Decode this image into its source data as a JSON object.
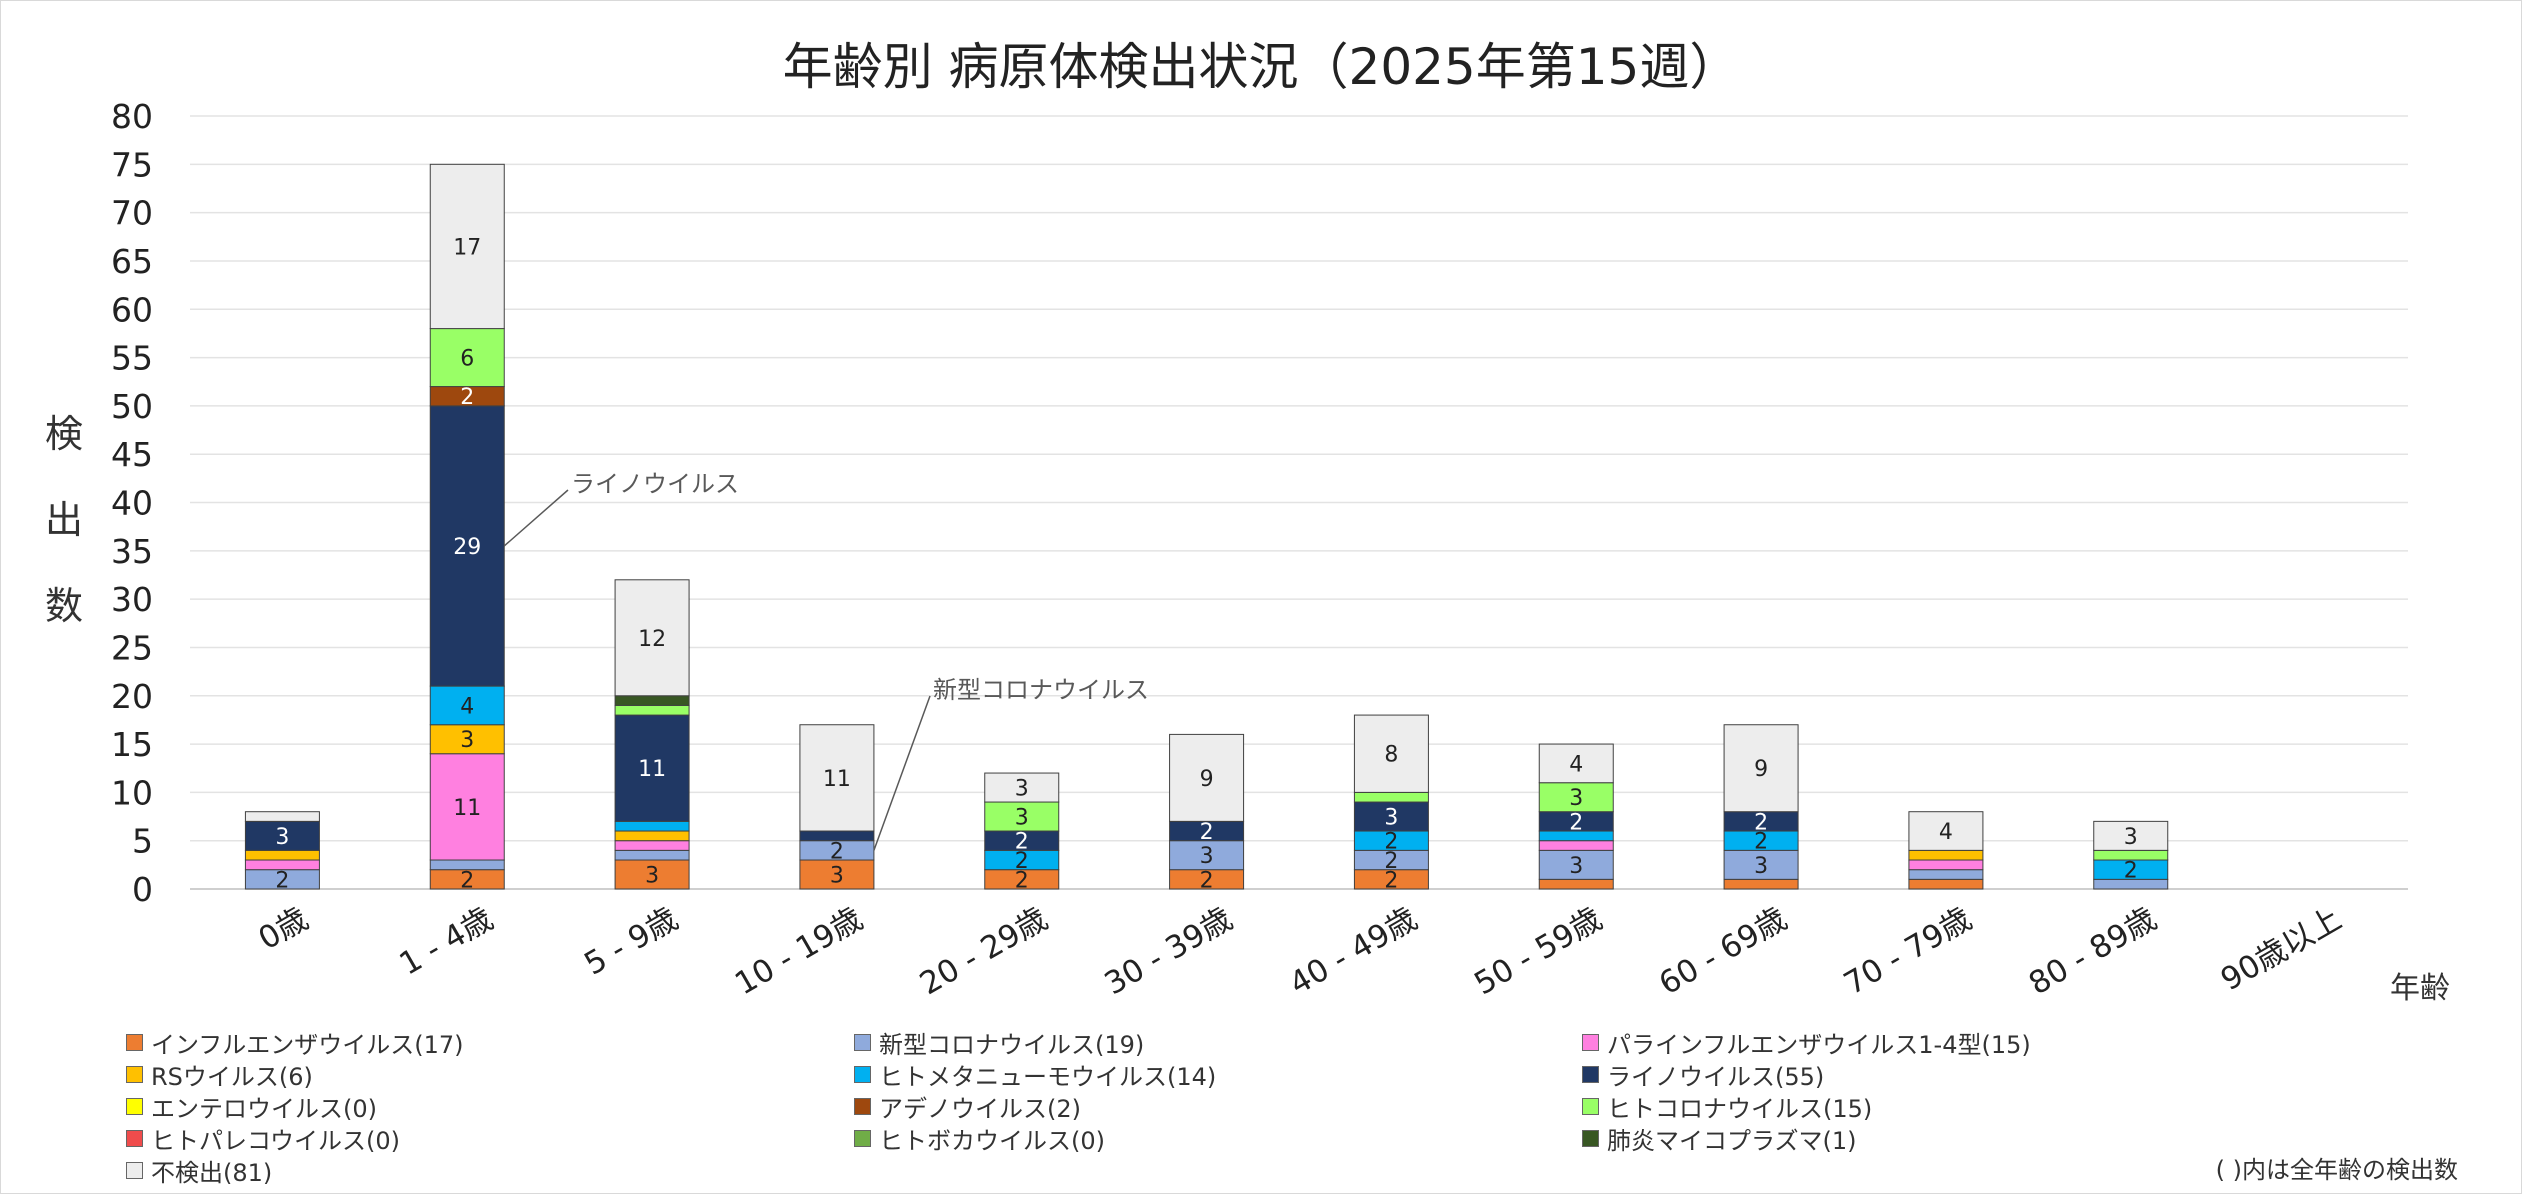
{
  "chart_data": {
    "type": "bar",
    "stacked": true,
    "title": "年齢別 病原体検出状況（2025年第15週）",
    "ylabel": "検出数",
    "xlabel": "年齢",
    "ylim": [
      0,
      80
    ],
    "ytick_step": 5,
    "categories": [
      "0歳",
      "1 - 4歳",
      "5 - 9歳",
      "10 - 19歳",
      "20 - 29歳",
      "30 - 39歳",
      "40 - 49歳",
      "50 - 59歳",
      "60 - 69歳",
      "70 - 79歳",
      "80 - 89歳",
      "90歳以上"
    ],
    "series": [
      {
        "name": "インフルエンザウイルス",
        "total": "(17)",
        "color": "#ED7D31",
        "values": [
          0,
          2,
          3,
          3,
          2,
          2,
          2,
          1,
          1,
          1,
          0,
          0
        ]
      },
      {
        "name": "新型コロナウイルス",
        "total": "(19)",
        "color": "#8FAADC",
        "values": [
          2,
          1,
          1,
          2,
          0,
          3,
          2,
          3,
          3,
          1,
          1,
          0
        ]
      },
      {
        "name": "パラインフルエンザウイルス1-4型",
        "total": "(15)",
        "color": "#FF80E0",
        "values": [
          1,
          11,
          1,
          0,
          0,
          0,
          0,
          1,
          0,
          1,
          0,
          0
        ]
      },
      {
        "name": "RSウイルス",
        "total": "(6)",
        "color": "#FFC000",
        "values": [
          1,
          3,
          1,
          0,
          0,
          0,
          0,
          0,
          0,
          1,
          0,
          0
        ]
      },
      {
        "name": "ヒトメタニューモウイルス",
        "total": "(14)",
        "color": "#00B0F0",
        "values": [
          0,
          4,
          1,
          0,
          2,
          0,
          2,
          1,
          2,
          0,
          2,
          0
        ]
      },
      {
        "name": "ライノウイルス",
        "total": "(55)",
        "color": "#203864",
        "values": [
          3,
          29,
          11,
          1,
          2,
          2,
          3,
          2,
          2,
          0,
          0,
          0
        ]
      },
      {
        "name": "エンテロウイルス",
        "total": "(0)",
        "color": "#FFFF00",
        "values": [
          0,
          0,
          0,
          0,
          0,
          0,
          0,
          0,
          0,
          0,
          0,
          0
        ]
      },
      {
        "name": "アデノウイルス",
        "total": "(2)",
        "color": "#9E480E",
        "values": [
          0,
          2,
          0,
          0,
          0,
          0,
          0,
          0,
          0,
          0,
          0,
          0
        ]
      },
      {
        "name": "ヒトコロナウイルス",
        "total": "(15)",
        "color": "#99FF66",
        "values": [
          0,
          6,
          1,
          0,
          3,
          0,
          1,
          3,
          0,
          0,
          1,
          0
        ]
      },
      {
        "name": "ヒトパレコウイルス",
        "total": "(0)",
        "color": "#F04C4C",
        "values": [
          0,
          0,
          0,
          0,
          0,
          0,
          0,
          0,
          0,
          0,
          0,
          0
        ]
      },
      {
        "name": "ヒトボカウイルス",
        "total": "(0)",
        "color": "#70AD47",
        "values": [
          0,
          0,
          0,
          0,
          0,
          0,
          0,
          0,
          0,
          0,
          0,
          0
        ]
      },
      {
        "name": "肺炎マイコプラズマ",
        "total": "(1)",
        "color": "#385723",
        "values": [
          0,
          0,
          1,
          0,
          0,
          0,
          0,
          0,
          0,
          0,
          0,
          0
        ]
      },
      {
        "name": "不検出",
        "total": "(81)",
        "color": "#EDEDED",
        "values": [
          1,
          17,
          12,
          11,
          3,
          9,
          8,
          4,
          9,
          4,
          3,
          0
        ]
      }
    ],
    "annotations": [
      {
        "text": "ライノウイルス",
        "category_index": 1,
        "series_index": 5
      },
      {
        "text": "新型コロナウイルス",
        "category_index": 3,
        "series_index": 1
      }
    ],
    "note": "( )内は全年齢の検出数"
  }
}
